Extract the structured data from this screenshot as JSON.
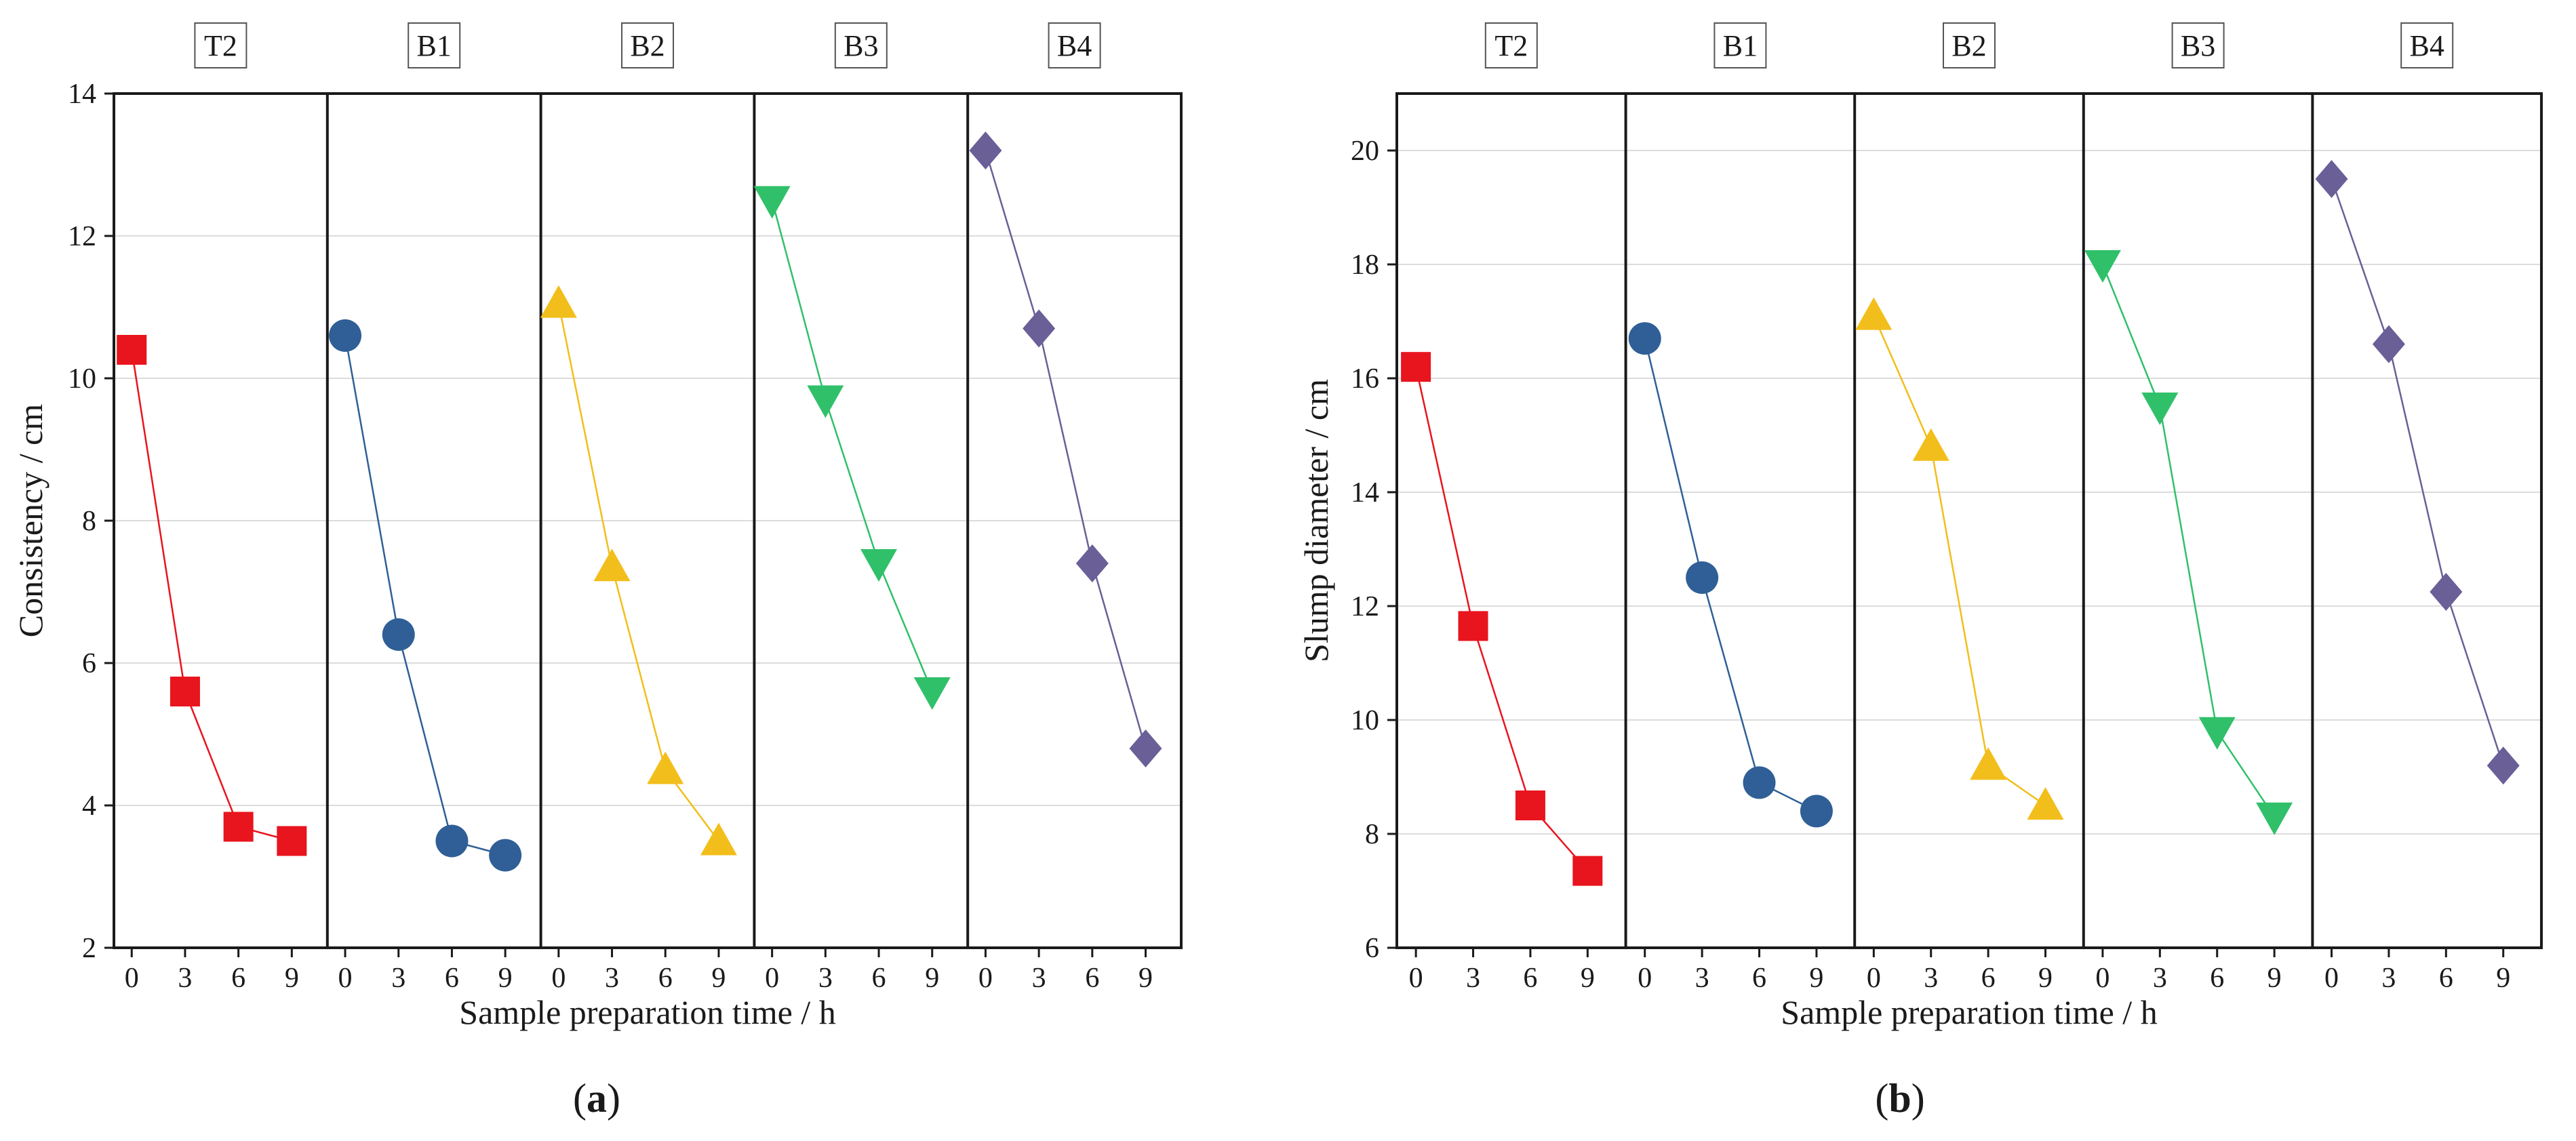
{
  "chart_data": [
    {
      "type": "line",
      "caption": "(a)",
      "caption_letter": "a",
      "xlabel": "Sample preparation time / h",
      "ylabel": "Consistency / cm",
      "ylim": [
        2,
        14
      ],
      "yticks": [
        2,
        4,
        6,
        8,
        10,
        12,
        14
      ],
      "xlim": [
        -1,
        11
      ],
      "xticks": [
        0,
        3,
        6,
        9
      ],
      "grid": "horizontal",
      "panels": [
        {
          "name": "T2",
          "color": "#e8141e",
          "marker": "square",
          "x": [
            0,
            3,
            6,
            9
          ],
          "values": [
            10.4,
            5.6,
            3.7,
            3.5
          ]
        },
        {
          "name": "B1",
          "color": "#2f5f96",
          "marker": "circle",
          "x": [
            0,
            3,
            6,
            9
          ],
          "values": [
            10.6,
            6.4,
            3.5,
            3.3
          ]
        },
        {
          "name": "B2",
          "color": "#f2be1b",
          "marker": "triangle-up",
          "x": [
            0,
            3,
            6,
            9
          ],
          "values": [
            11.05,
            7.35,
            4.5,
            3.5
          ]
        },
        {
          "name": "B3",
          "color": "#30c06a",
          "marker": "triangle-down",
          "x": [
            0,
            3,
            6,
            9
          ],
          "values": [
            12.5,
            9.7,
            7.4,
            5.6
          ]
        },
        {
          "name": "B4",
          "color": "#6a5f97",
          "marker": "diamond",
          "x": [
            0,
            3,
            6,
            9
          ],
          "values": [
            13.2,
            10.7,
            7.4,
            4.8
          ]
        }
      ]
    },
    {
      "type": "line",
      "caption": "(b)",
      "caption_letter": "b",
      "xlabel": "Sample preparation time / h",
      "ylabel": "Slump diameter / cm",
      "ylim": [
        6,
        21
      ],
      "yticks": [
        6,
        8,
        10,
        12,
        14,
        16,
        18,
        20
      ],
      "xlim": [
        -1,
        11
      ],
      "xticks": [
        0,
        3,
        6,
        9
      ],
      "grid": "horizontal",
      "panels": [
        {
          "name": "T2",
          "color": "#e8141e",
          "marker": "square",
          "x": [
            0,
            3,
            6,
            9
          ],
          "values": [
            16.2,
            11.65,
            8.5,
            7.35
          ]
        },
        {
          "name": "B1",
          "color": "#2f5f96",
          "marker": "circle",
          "x": [
            0,
            3,
            6,
            9
          ],
          "values": [
            16.7,
            12.5,
            8.9,
            8.4
          ]
        },
        {
          "name": "B2",
          "color": "#f2be1b",
          "marker": "triangle-up",
          "x": [
            0,
            3,
            6,
            9
          ],
          "values": [
            17.1,
            14.8,
            9.2,
            8.5
          ]
        },
        {
          "name": "B3",
          "color": "#30c06a",
          "marker": "triangle-down",
          "x": [
            0,
            3,
            6,
            9
          ],
          "values": [
            18.0,
            15.5,
            9.8,
            8.3
          ]
        },
        {
          "name": "B4",
          "color": "#6a5f97",
          "marker": "diamond",
          "x": [
            0,
            3,
            6,
            9
          ],
          "values": [
            19.5,
            16.6,
            12.25,
            9.2
          ]
        }
      ]
    }
  ]
}
